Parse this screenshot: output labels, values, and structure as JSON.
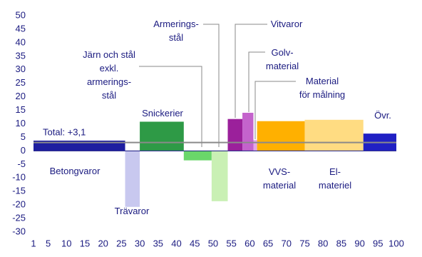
{
  "chart_data": {
    "type": "variable-width-bar",
    "categories": [
      "Betongvaror",
      "Trävaror",
      "Snickerier",
      "Järn och stål\nexkl.\narmerings-\nstål",
      "Armerings-\nstål",
      "Vitvaror",
      "Golv-\nmaterial",
      "Material\nför målning",
      "VVS-\nmaterial",
      "El-\nmateriel",
      "Övr."
    ],
    "bins": [
      1,
      26,
      30,
      42,
      49.6,
      54,
      58,
      61,
      62,
      75,
      91,
      100
    ],
    "values": [
      3.8,
      -20.7,
      10.8,
      -3.5,
      -18.6,
      11.8,
      14.1,
      4,
      11,
      11.5,
      6.4
    ],
    "colors": [
      "#1e1ea0",
      "#c8c8ef",
      "#2e9a46",
      "#6ad66a",
      "#c9f0b4",
      "#9b209b",
      "#c463cc",
      "#e3a6e6",
      "#ffb000",
      "#ffdc82",
      "#2020c4"
    ],
    "total": {
      "value": 3.1,
      "label": "Total: +3,1"
    },
    "xlim": [
      1,
      100
    ],
    "xticks": [
      1,
      5,
      10,
      15,
      20,
      25,
      30,
      35,
      40,
      45,
      50,
      55,
      60,
      65,
      70,
      75,
      80,
      85,
      90,
      95,
      100
    ],
    "ylim": [
      -30,
      50
    ],
    "yticks": [
      -30,
      -25,
      -20,
      -15,
      -10,
      -5,
      0,
      5,
      10,
      15,
      20,
      25,
      30,
      35,
      40,
      45,
      50
    ]
  }
}
